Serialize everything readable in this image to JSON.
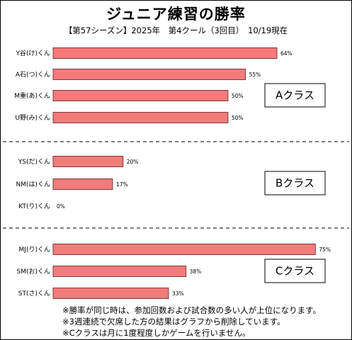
{
  "title": "ジュニア練習の勝率",
  "subtitle": "【第57シーズン】2025年　第4クール（3回目）　10/19現在",
  "notes": [
    "※勝率が同じ時は、参加回数および試合数の多い人が上位になります。",
    "※3週連続で欠席した方の結果はグラフから削除しています。",
    "※Cクラスは月に1度程度しかゲームを行いません。"
  ],
  "colors": {
    "bar": "#f47b7b",
    "bar_stroke": "#7a3b3b",
    "divider": "#000000"
  },
  "chart_data": {
    "type": "bar",
    "orientation": "horizontal",
    "title": "ジュニア練習の勝率",
    "subtitle": "【第57シーズン】2025年　第4クール（3回目）　10/19現在",
    "xlim": [
      0,
      80
    ],
    "grid": false,
    "groups": [
      {
        "label": "Aクラス",
        "categories": [
          "Y谷(け)くん",
          "A石(つ)くん",
          "M重(あ)くん",
          "U野(み)くん"
        ],
        "values": [
          64,
          55,
          50,
          50
        ],
        "value_labels": [
          "64%",
          "55%",
          "50%",
          "50%"
        ]
      },
      {
        "label": "Bクラス",
        "categories": [
          "YS(だ)くん",
          "NM(は)くん",
          "KT(り)くん"
        ],
        "values": [
          20,
          17,
          0
        ],
        "value_labels": [
          "20%",
          "17%",
          "0%"
        ]
      },
      {
        "label": "Cクラス",
        "categories": [
          "MJ(り)くん",
          "SM(お)くん",
          "ST(さ)くん"
        ],
        "values": [
          75,
          38,
          33
        ],
        "value_labels": [
          "75%",
          "38%",
          "33%"
        ]
      }
    ]
  }
}
